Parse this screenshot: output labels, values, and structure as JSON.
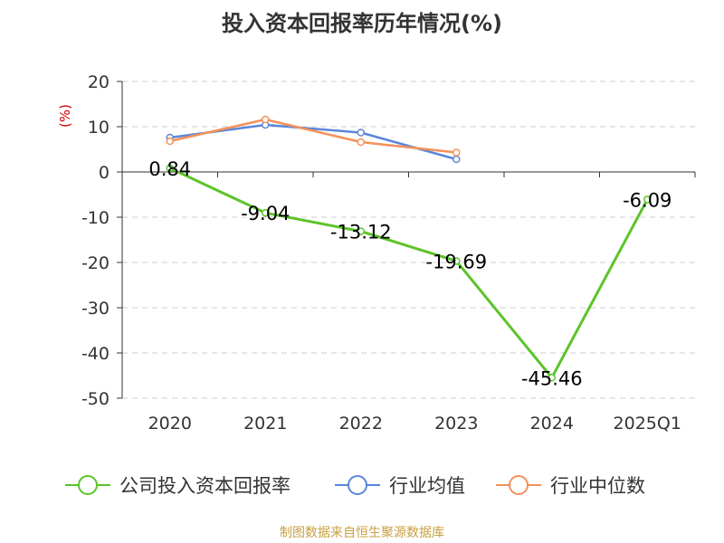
{
  "chart_data": {
    "type": "line",
    "title": "投入资本回报率历年情况(%)",
    "ylabel": "(%)",
    "categories": [
      "2020",
      "2021",
      "2022",
      "2023",
      "2024",
      "2025Q1"
    ],
    "ylim": [
      -50,
      20
    ],
    "yticks": [
      20,
      10,
      0,
      -10,
      -20,
      -30,
      -40,
      -50
    ],
    "grid": true,
    "legend_position": "bottom",
    "series": [
      {
        "name": "公司投入资本回报率",
        "color": "#5cc42a",
        "values": [
          0.84,
          -9.04,
          -13.12,
          -19.69,
          -45.46,
          -6.09
        ],
        "labels": [
          "0.84",
          "-9.04",
          "-13.12",
          "-19.69",
          "-45.46",
          "-6.09"
        ]
      },
      {
        "name": "行业均值",
        "color": "#5b86d8",
        "values": [
          7.6,
          10.4,
          8.7,
          2.8,
          null,
          null
        ]
      },
      {
        "name": "行业中位数",
        "color": "#f4915a",
        "values": [
          6.8,
          11.6,
          6.6,
          4.3,
          null,
          null
        ]
      }
    ]
  },
  "source": "制图数据来自恒生聚源数据库"
}
